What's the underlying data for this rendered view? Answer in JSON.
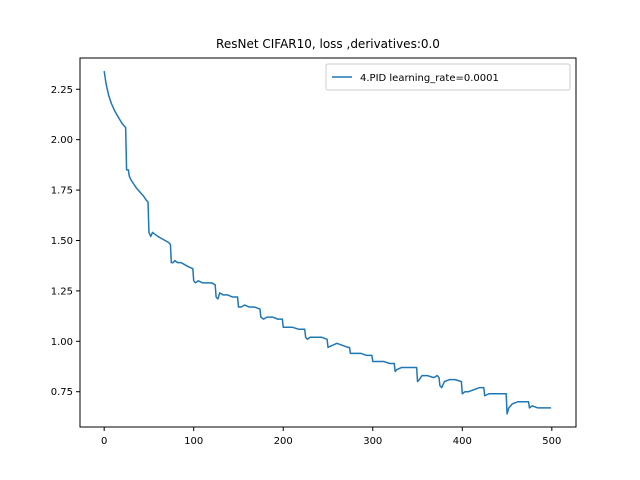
{
  "chart_data": {
    "type": "line",
    "title": "ResNet CIFAR10, loss ,derivatives:0.0",
    "xlabel": "",
    "ylabel": "",
    "xlim": [
      -27,
      527
    ],
    "ylim": [
      0.575,
      2.405
    ],
    "xticks": [
      0,
      100,
      200,
      300,
      400,
      500
    ],
    "yticks": [
      0.75,
      1.0,
      1.25,
      1.5,
      1.75,
      2.0,
      2.25
    ],
    "ytick_labels": [
      "0.75",
      "1.00",
      "1.25",
      "1.50",
      "1.75",
      "2.00",
      "2.25"
    ],
    "grid": false,
    "legend_position": "top-right",
    "series": [
      {
        "name": "4.PID learning_rate=0.0001",
        "color": "#1f77b4",
        "points": [
          [
            0,
            2.34
          ],
          [
            2,
            2.28
          ],
          [
            5,
            2.22
          ],
          [
            8,
            2.18
          ],
          [
            12,
            2.14
          ],
          [
            16,
            2.11
          ],
          [
            20,
            2.08
          ],
          [
            24,
            2.06
          ],
          [
            25,
            1.85
          ],
          [
            27,
            1.85
          ],
          [
            28,
            1.82
          ],
          [
            30,
            1.8
          ],
          [
            33,
            1.78
          ],
          [
            36,
            1.76
          ],
          [
            40,
            1.74
          ],
          [
            44,
            1.72
          ],
          [
            47,
            1.7
          ],
          [
            49,
            1.69
          ],
          [
            50,
            1.54
          ],
          [
            52,
            1.52
          ],
          [
            54,
            1.54
          ],
          [
            57,
            1.53
          ],
          [
            60,
            1.52
          ],
          [
            64,
            1.51
          ],
          [
            68,
            1.5
          ],
          [
            72,
            1.49
          ],
          [
            74,
            1.48
          ],
          [
            75,
            1.39
          ],
          [
            77,
            1.39
          ],
          [
            79,
            1.4
          ],
          [
            82,
            1.39
          ],
          [
            86,
            1.39
          ],
          [
            90,
            1.38
          ],
          [
            94,
            1.37
          ],
          [
            99,
            1.36
          ],
          [
            100,
            1.3
          ],
          [
            102,
            1.29
          ],
          [
            105,
            1.3
          ],
          [
            110,
            1.29
          ],
          [
            115,
            1.29
          ],
          [
            120,
            1.29
          ],
          [
            124,
            1.28
          ],
          [
            125,
            1.22
          ],
          [
            127,
            1.21
          ],
          [
            129,
            1.24
          ],
          [
            133,
            1.23
          ],
          [
            138,
            1.23
          ],
          [
            143,
            1.22
          ],
          [
            149,
            1.22
          ],
          [
            150,
            1.17
          ],
          [
            153,
            1.17
          ],
          [
            157,
            1.18
          ],
          [
            162,
            1.17
          ],
          [
            168,
            1.17
          ],
          [
            174,
            1.16
          ],
          [
            175,
            1.12
          ],
          [
            178,
            1.11
          ],
          [
            182,
            1.12
          ],
          [
            188,
            1.12
          ],
          [
            194,
            1.11
          ],
          [
            199,
            1.11
          ],
          [
            200,
            1.07
          ],
          [
            204,
            1.07
          ],
          [
            210,
            1.07
          ],
          [
            217,
            1.06
          ],
          [
            224,
            1.06
          ],
          [
            225,
            1.02
          ],
          [
            227,
            1.01
          ],
          [
            230,
            1.02
          ],
          [
            236,
            1.02
          ],
          [
            243,
            1.02
          ],
          [
            249,
            1.01
          ],
          [
            250,
            0.97
          ],
          [
            255,
            0.98
          ],
          [
            260,
            0.99
          ],
          [
            266,
            0.98
          ],
          [
            272,
            0.97
          ],
          [
            274,
            0.97
          ],
          [
            275,
            0.94
          ],
          [
            280,
            0.94
          ],
          [
            287,
            0.94
          ],
          [
            293,
            0.93
          ],
          [
            299,
            0.93
          ],
          [
            300,
            0.9
          ],
          [
            305,
            0.9
          ],
          [
            312,
            0.9
          ],
          [
            319,
            0.89
          ],
          [
            324,
            0.89
          ],
          [
            325,
            0.85
          ],
          [
            327,
            0.86
          ],
          [
            332,
            0.87
          ],
          [
            338,
            0.87
          ],
          [
            344,
            0.87
          ],
          [
            349,
            0.87
          ],
          [
            350,
            0.8
          ],
          [
            352,
            0.81
          ],
          [
            355,
            0.83
          ],
          [
            361,
            0.83
          ],
          [
            368,
            0.82
          ],
          [
            372,
            0.83
          ],
          [
            374,
            0.82
          ],
          [
            375,
            0.78
          ],
          [
            377,
            0.77
          ],
          [
            380,
            0.8
          ],
          [
            386,
            0.81
          ],
          [
            392,
            0.81
          ],
          [
            399,
            0.8
          ],
          [
            400,
            0.74
          ],
          [
            403,
            0.75
          ],
          [
            407,
            0.75
          ],
          [
            413,
            0.76
          ],
          [
            419,
            0.77
          ],
          [
            424,
            0.77
          ],
          [
            425,
            0.73
          ],
          [
            430,
            0.74
          ],
          [
            436,
            0.74
          ],
          [
            442,
            0.74
          ],
          [
            449,
            0.74
          ],
          [
            450,
            0.64
          ],
          [
            452,
            0.67
          ],
          [
            456,
            0.69
          ],
          [
            462,
            0.7
          ],
          [
            468,
            0.7
          ],
          [
            474,
            0.7
          ],
          [
            475,
            0.67
          ],
          [
            478,
            0.68
          ],
          [
            484,
            0.67
          ],
          [
            490,
            0.67
          ],
          [
            496,
            0.67
          ],
          [
            499,
            0.67
          ]
        ]
      }
    ]
  }
}
